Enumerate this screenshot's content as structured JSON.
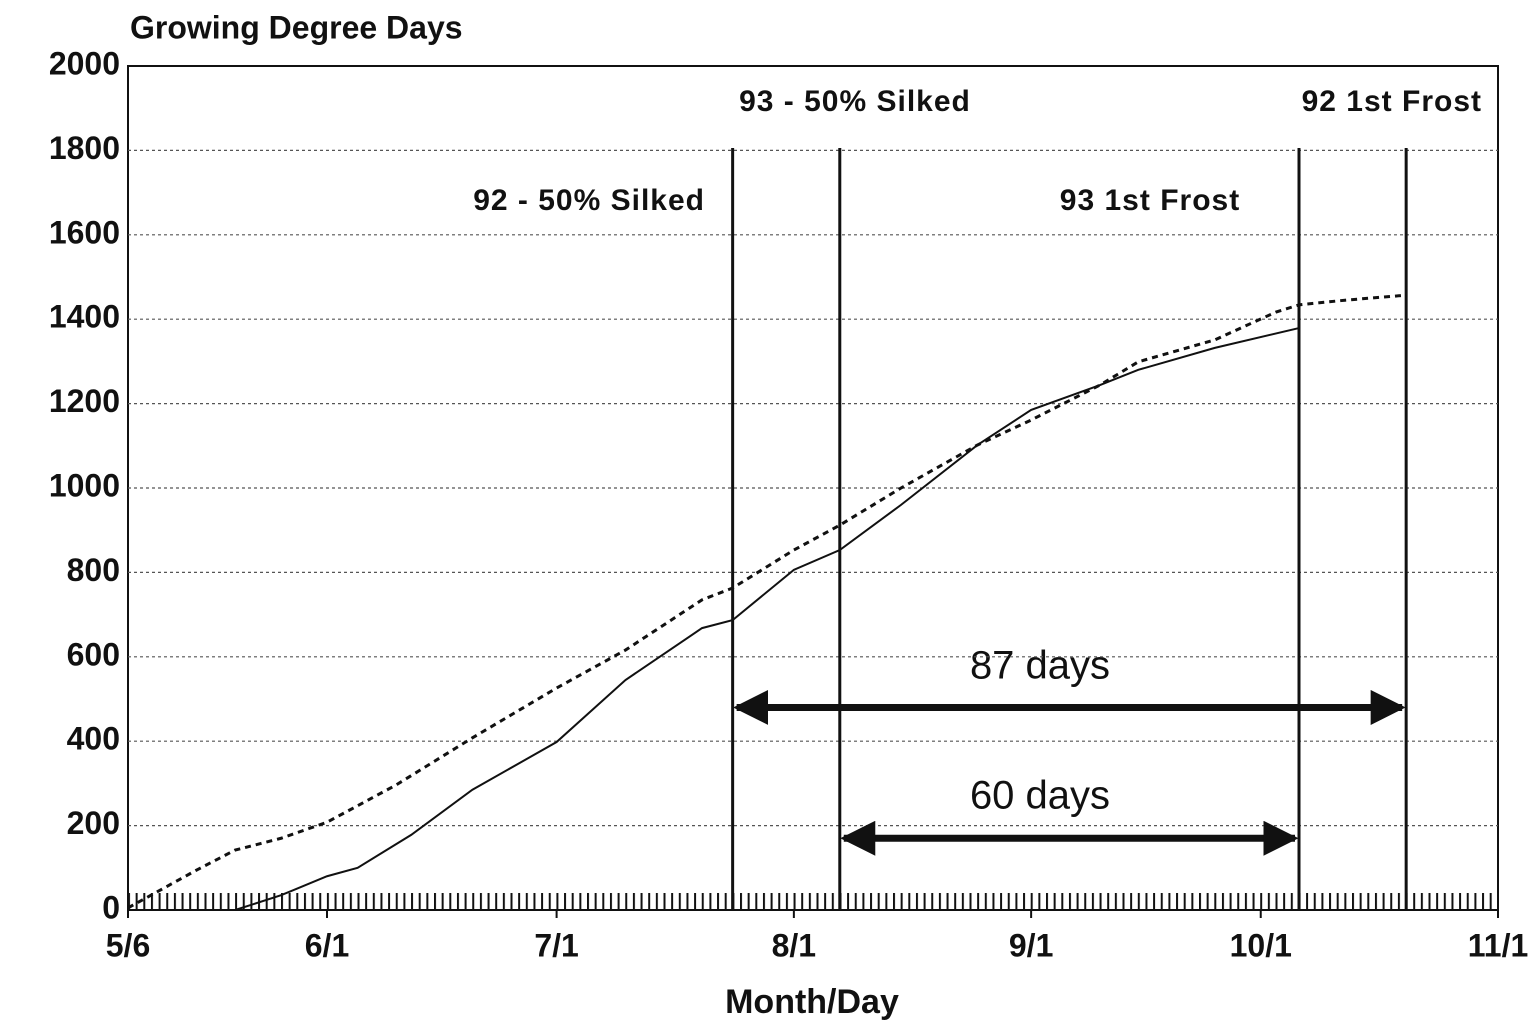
{
  "chart_data": {
    "type": "line",
    "ylabel": "Growing Degree Days",
    "xlabel": "Month/Day",
    "xlim": [
      "5/6",
      "11/1"
    ],
    "xticks": [
      "5/6",
      "6/1",
      "7/1",
      "8/1",
      "9/1",
      "10/1",
      "11/1"
    ],
    "ylim": [
      0,
      2000
    ],
    "yticks": [
      0,
      200,
      400,
      600,
      800,
      1000,
      1200,
      1400,
      1600,
      1800,
      2000
    ],
    "grid": true,
    "series": [
      {
        "color": "#111111",
        "style": "solid",
        "x": [
          "5/20",
          "5/26",
          "6/1",
          "6/5",
          "6/12",
          "6/20",
          "7/1",
          "7/10",
          "7/20",
          "7/24",
          "8/1",
          "8/7",
          "8/15",
          "8/25",
          "9/1",
          "9/10",
          "9/15",
          "9/25",
          "10/6"
        ],
        "values": [
          0,
          35,
          80,
          100,
          178,
          285,
          398,
          545,
          668,
          687,
          806,
          853,
          960,
          1102,
          1185,
          1244,
          1280,
          1332,
          1379
        ]
      },
      {
        "color": "#111111",
        "style": "dotted",
        "x": [
          "5/6",
          "5/15",
          "5/20",
          "5/26",
          "6/1",
          "6/10",
          "6/20",
          "7/1",
          "7/10",
          "7/20",
          "7/24",
          "8/1",
          "8/7",
          "8/15",
          "8/25",
          "9/1",
          "9/10",
          "9/15",
          "9/25",
          "10/3",
          "10/6",
          "10/12",
          "10/20"
        ],
        "values": [
          5,
          95,
          142,
          170,
          208,
          296,
          408,
          526,
          616,
          735,
          763,
          853,
          912,
          1000,
          1102,
          1161,
          1244,
          1299,
          1351,
          1417,
          1434,
          1445,
          1457
        ]
      }
    ],
    "events": [
      {
        "label": "92 - 50% Silked",
        "date": "7/24"
      },
      {
        "label": "93 - 50% Silked",
        "date": "8/7"
      },
      {
        "label": "93 1st Frost",
        "date": "10/6"
      },
      {
        "label": "92 1st Frost",
        "date": "10/20"
      }
    ],
    "spans": [
      {
        "label": "87 days",
        "from": "7/24",
        "to": "10/20",
        "y": 480
      },
      {
        "label": "60 days",
        "from": "8/7",
        "to": "10/6",
        "y": 170
      }
    ]
  }
}
